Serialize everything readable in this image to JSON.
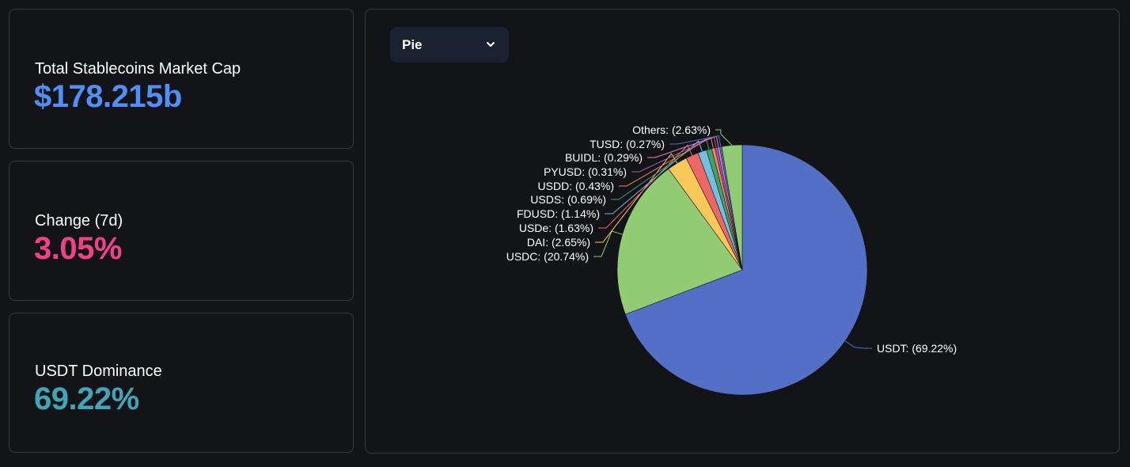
{
  "stats": {
    "market_cap": {
      "label": "Total Stablecoins Market Cap",
      "value": "$178.215b",
      "color": "#4f8ff7"
    },
    "change": {
      "label": "Change (7d)",
      "value": "3.05%",
      "color": "#f2418a"
    },
    "dominance": {
      "label": "USDT Dominance",
      "value": "69.22%",
      "color": "#3fa6b8"
    }
  },
  "chart_selector": {
    "value": "Pie",
    "icon": "chevron-down-icon"
  },
  "chart_data": {
    "type": "pie",
    "slices": [
      {
        "name": "USDT",
        "value": 69.22,
        "label": "USDT: (69.22%)",
        "color": "#5470c6"
      },
      {
        "name": "USDC",
        "value": 20.74,
        "label": "USDC: (20.74%)",
        "color": "#91cc75"
      },
      {
        "name": "DAI",
        "value": 2.65,
        "label": "DAI: (2.65%)",
        "color": "#fac858"
      },
      {
        "name": "USDe",
        "value": 1.63,
        "label": "USDe: (1.63%)",
        "color": "#ee6666"
      },
      {
        "name": "FDUSD",
        "value": 1.14,
        "label": "FDUSD: (1.14%)",
        "color": "#73c0de"
      },
      {
        "name": "USDS",
        "value": 0.69,
        "label": "USDS: (0.69%)",
        "color": "#3ba272"
      },
      {
        "name": "USDD",
        "value": 0.43,
        "label": "USDD: (0.43%)",
        "color": "#fc8452"
      },
      {
        "name": "PYUSD",
        "value": 0.31,
        "label": "PYUSD: (0.31%)",
        "color": "#9a60b4"
      },
      {
        "name": "BUIDL",
        "value": 0.29,
        "label": "BUIDL: (0.29%)",
        "color": "#ea7ccc"
      },
      {
        "name": "TUSD",
        "value": 0.27,
        "label": "TUSD: (0.27%)",
        "color": "#5470c6"
      },
      {
        "name": "Others",
        "value": 2.63,
        "label": "Others: (2.63%)",
        "color": "#91cc75"
      }
    ]
  }
}
